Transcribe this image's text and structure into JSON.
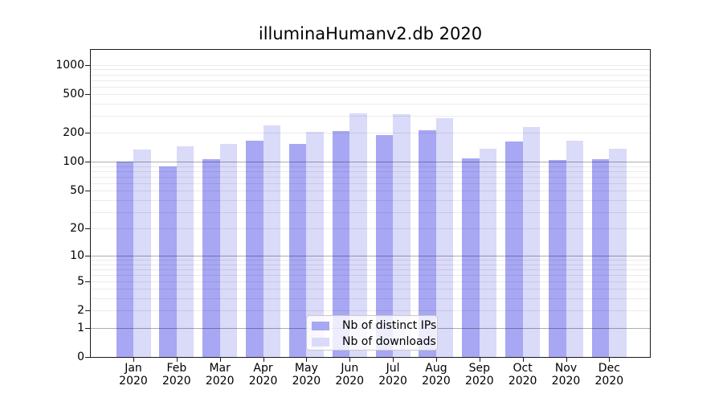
{
  "chart_data": {
    "type": "bar",
    "title": "illuminaHumanv2.db 2020",
    "categories": [
      "Jan",
      "Feb",
      "Mar",
      "Apr",
      "May",
      "Jun",
      "Jul",
      "Aug",
      "Sep",
      "Oct",
      "Nov",
      "Dec"
    ],
    "x_tick_second_line": "2020",
    "series": [
      {
        "name": "Nb of distinct IPs",
        "color": "#a7a7f4",
        "values": [
          100,
          90,
          107,
          167,
          153,
          208,
          190,
          212,
          108,
          163,
          104,
          107
        ]
      },
      {
        "name": "Nb of downloads",
        "color": "#dadaf9",
        "values": [
          135,
          145,
          153,
          238,
          207,
          320,
          310,
          285,
          137,
          228,
          165,
          136
        ]
      }
    ],
    "yscale": "log1p",
    "yticks": [
      0,
      1,
      2,
      5,
      10,
      20,
      50,
      100,
      200,
      500,
      1000
    ],
    "major_grid_values": [
      1,
      10,
      100
    ],
    "ylim": [
      0,
      1400
    ],
    "grid": true,
    "legend": {
      "position": "lower center"
    },
    "colors": {
      "background": "#ffffff",
      "axis": "#1a1a1a",
      "text": "#000000",
      "major_grid": "rgba(0,0,0,0.32)",
      "minor_grid": "rgba(0,0,0,0.08)"
    }
  }
}
